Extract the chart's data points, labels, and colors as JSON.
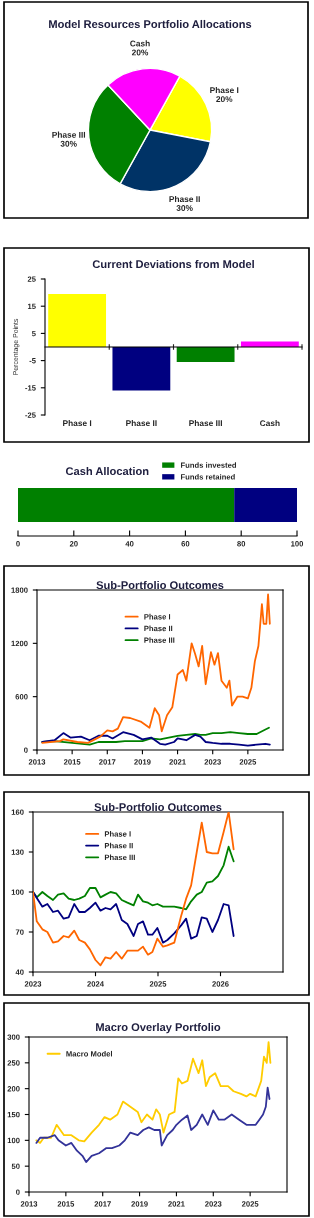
{
  "chart_data": [
    {
      "type": "pie",
      "title": "Model Resources Portfolio Allocations",
      "categories": [
        "Phase I",
        "Phase II",
        "Phase III",
        "Cash"
      ],
      "values": [
        20,
        30,
        30,
        20
      ],
      "value_labels": [
        "20%",
        "30%",
        "30%",
        "20%"
      ],
      "colors": [
        "#ffff00",
        "#003366",
        "#008000",
        "#ff00ff"
      ]
    },
    {
      "type": "bar",
      "title": "Current Deviations from Model",
      "ylabel": "Percentage Points",
      "categories": [
        "Phase I",
        "Phase II",
        "Phase III",
        "Cash"
      ],
      "values": [
        19.5,
        -16,
        -5.5,
        2
      ],
      "colors": [
        "#ffff00",
        "#000080",
        "#008000",
        "#ff00ff"
      ],
      "ylim": [
        -25,
        25
      ],
      "yticks": [
        -25,
        -15,
        -5,
        5,
        15,
        25
      ]
    },
    {
      "type": "bar",
      "title": "Cash Allocation",
      "orientation": "horizontal",
      "stacked": true,
      "categories": [
        null
      ],
      "legend": "top",
      "xlim": [
        0,
        100
      ],
      "xticks": [
        0,
        20,
        40,
        60,
        80,
        100
      ],
      "series": [
        {
          "name": "Funds invested",
          "color": "#008000",
          "values": [
            77.5
          ]
        },
        {
          "name": "Funds retained",
          "color": "#000080",
          "values": [
            22.5
          ]
        }
      ]
    },
    {
      "type": "line",
      "title": "Sub-Portfolio Outcomes",
      "legend": "top",
      "xlim": [
        2013,
        2027
      ],
      "xticks": [
        2013,
        2015,
        2017,
        2019,
        2021,
        2023,
        2025
      ],
      "ylim": [
        0,
        1800
      ],
      "yticks": [
        0,
        600,
        1200,
        1800
      ],
      "series": [
        {
          "name": "Phase I",
          "color": "#ff6600",
          "x": [
            2013.3,
            2014.3,
            2014.5,
            2015.3,
            2015.9,
            2016.6,
            2017.0,
            2017.3,
            2017.6,
            2017.9,
            2018.3,
            2018.9,
            2019.4,
            2019.7,
            2019.95,
            2020.1,
            2020.4,
            2020.7,
            2021.0,
            2021.3,
            2021.5,
            2021.8,
            2022.0,
            2022.2,
            2022.4,
            2022.6,
            2022.9,
            2023.1,
            2023.3,
            2023.5,
            2023.8,
            2023.95,
            2024.1,
            2024.4,
            2024.7,
            2025.0,
            2025.2,
            2025.4,
            2025.6,
            2025.8,
            2025.9,
            2026.05,
            2026.15,
            2026.25
          ],
          "values": [
            80,
            100,
            120,
            90,
            80,
            150,
            220,
            210,
            240,
            370,
            360,
            320,
            250,
            470,
            390,
            210,
            390,
            480,
            850,
            900,
            780,
            1200,
            1080,
            940,
            1170,
            740,
            1100,
            960,
            1090,
            780,
            700,
            780,
            500,
            600,
            600,
            580,
            700,
            1000,
            1170,
            1640,
            1420,
            1420,
            1750,
            1420
          ]
        },
        {
          "name": "Phase II",
          "color": "#000080",
          "x": [
            2013.3,
            2014.0,
            2014.5,
            2014.9,
            2015.5,
            2016.0,
            2016.5,
            2017.0,
            2017.3,
            2017.9,
            2018.5,
            2019.0,
            2019.5,
            2020.0,
            2020.3,
            2020.8,
            2021.0,
            2021.5,
            2022.0,
            2022.3,
            2022.6,
            2023.0,
            2023.5,
            2024.0,
            2024.5,
            2025.0,
            2025.5,
            2026.0,
            2026.25
          ],
          "values": [
            90,
            110,
            190,
            140,
            150,
            110,
            160,
            160,
            130,
            200,
            170,
            120,
            140,
            70,
            60,
            90,
            130,
            110,
            170,
            150,
            90,
            80,
            70,
            70,
            60,
            50,
            60,
            70,
            60
          ]
        },
        {
          "name": "Phase III",
          "color": "#008000",
          "x": [
            2013.3,
            2014.0,
            2015.0,
            2016.0,
            2016.5,
            2017.5,
            2018.0,
            2019.0,
            2019.5,
            2020.0,
            2020.5,
            2021.0,
            2021.5,
            2022.0,
            2022.3,
            2022.6,
            2023.0,
            2023.5,
            2024.0,
            2024.5,
            2025.0,
            2025.5,
            2026.0,
            2026.2
          ],
          "values": [
            90,
            100,
            80,
            60,
            90,
            90,
            100,
            100,
            130,
            120,
            140,
            160,
            170,
            180,
            170,
            170,
            190,
            190,
            200,
            190,
            180,
            180,
            230,
            250
          ]
        }
      ]
    },
    {
      "type": "line",
      "title": "Sub-Portfolio Outcomes",
      "legend": "top left",
      "xlim": [
        2023,
        2027
      ],
      "xticks": [
        2023,
        2024,
        2025,
        2026
      ],
      "ylim": [
        40,
        160
      ],
      "yticks": [
        40,
        70,
        100,
        130,
        160
      ],
      "series": [
        {
          "name": "Phase I",
          "color": "#ff6600",
          "x": [
            2023.0,
            2023.06,
            2023.15,
            2023.23,
            2023.32,
            2023.4,
            2023.49,
            2023.57,
            2023.66,
            2023.74,
            2023.83,
            2023.91,
            2024.0,
            2024.08,
            2024.16,
            2024.24,
            2024.33,
            2024.42,
            2024.51,
            2024.61,
            2024.68,
            2024.76,
            2024.84,
            2024.91,
            2024.99,
            2025.08,
            2025.15,
            2025.26,
            2025.37,
            2025.45,
            2025.53,
            2025.62,
            2025.7,
            2025.78,
            2025.87,
            2025.96,
            2026.05,
            2026.13,
            2026.21
          ],
          "values": [
            100,
            78,
            72,
            70,
            62,
            63,
            67,
            66,
            71,
            64,
            62,
            57,
            49,
            45,
            51,
            50,
            55,
            50,
            56,
            56,
            56,
            59,
            53,
            55,
            65,
            59,
            60,
            62,
            82,
            95,
            105,
            130,
            152,
            130,
            129,
            129,
            145,
            160,
            132
          ]
        },
        {
          "name": "Phase II",
          "color": "#000080",
          "x": [
            2023.0,
            2023.15,
            2023.23,
            2023.32,
            2023.4,
            2023.49,
            2023.57,
            2023.66,
            2023.74,
            2023.83,
            2023.91,
            2024.0,
            2024.08,
            2024.16,
            2024.24,
            2024.33,
            2024.42,
            2024.51,
            2024.61,
            2024.68,
            2024.76,
            2024.84,
            2024.91,
            2024.99,
            2025.08,
            2025.15,
            2025.26,
            2025.37,
            2025.45,
            2025.53,
            2025.62,
            2025.7,
            2025.78,
            2025.87,
            2025.96,
            2026.05,
            2026.13,
            2026.21
          ],
          "values": [
            100,
            89,
            91,
            85,
            86,
            80,
            81,
            91,
            85,
            85,
            88,
            92,
            86,
            88,
            87,
            91,
            79,
            76,
            67,
            76,
            78,
            68,
            68,
            73,
            62,
            64,
            69,
            75,
            80,
            65,
            67,
            81,
            80,
            70,
            79,
            91,
            90,
            67
          ]
        },
        {
          "name": "Phase III",
          "color": "#008000",
          "x": [
            2023.0,
            2023.06,
            2023.15,
            2023.23,
            2023.32,
            2023.4,
            2023.49,
            2023.57,
            2023.66,
            2023.74,
            2023.83,
            2023.91,
            2024.0,
            2024.08,
            2024.16,
            2024.24,
            2024.33,
            2024.42,
            2024.51,
            2024.61,
            2024.68,
            2024.76,
            2024.84,
            2024.91,
            2024.99,
            2025.08,
            2025.15,
            2025.26,
            2025.37,
            2025.45,
            2025.53,
            2025.62,
            2025.7,
            2025.78,
            2025.87,
            2025.96,
            2026.05,
            2026.13,
            2026.21
          ],
          "values": [
            100,
            96,
            100,
            97,
            94,
            98,
            99,
            95,
            94,
            95,
            97,
            103,
            103,
            96,
            98,
            100,
            99,
            94,
            92,
            90,
            98,
            93,
            92,
            90,
            91,
            89,
            89,
            89,
            88,
            87,
            93,
            98,
            100,
            107,
            108,
            112,
            120,
            134,
            123
          ]
        }
      ]
    },
    {
      "type": "line",
      "title": "Macro Overlay Portfolio",
      "legend": "top left",
      "xlim": [
        2013,
        2027
      ],
      "xticks": [
        2013,
        2015,
        2017,
        2019,
        2021,
        2023,
        2025
      ],
      "ylim": [
        0,
        300
      ],
      "yticks": [
        0,
        50,
        100,
        150,
        200,
        250,
        300
      ],
      "series": [
        {
          "color": "#333399",
          "x": [
            2013.4,
            2013.6,
            2014.0,
            2014.4,
            2014.6,
            2015.0,
            2015.3,
            2015.6,
            2015.9,
            2016.1,
            2016.4,
            2016.8,
            2017.2,
            2017.5,
            2017.9,
            2018.2,
            2018.5,
            2018.9,
            2019.2,
            2019.5,
            2019.8,
            2020.1,
            2020.2,
            2020.5,
            2020.8,
            2021.0,
            2021.3,
            2021.6,
            2021.8,
            2022.1,
            2022.4,
            2022.7,
            2023.0,
            2023.3,
            2023.6,
            2024.0,
            2024.4,
            2024.8,
            2025.3,
            2025.5,
            2025.7,
            2025.85,
            2025.95,
            2026.05
          ],
          "values": [
            95,
            105,
            105,
            110,
            100,
            90,
            95,
            80,
            70,
            58,
            70,
            75,
            85,
            85,
            90,
            100,
            115,
            110,
            120,
            125,
            120,
            120,
            90,
            110,
            120,
            130,
            140,
            148,
            120,
            130,
            150,
            130,
            158,
            140,
            140,
            150,
            140,
            130,
            130,
            140,
            150,
            165,
            202,
            180
          ]
        },
        {
          "name": "Macro Model",
          "color": "#ffcc00",
          "x": [
            2013.4,
            2013.6,
            2013.8,
            2014.2,
            2014.5,
            2014.9,
            2015.3,
            2015.7,
            2016.0,
            2016.4,
            2016.8,
            2017.1,
            2017.4,
            2017.8,
            2018.1,
            2018.5,
            2018.9,
            2019.1,
            2019.4,
            2019.7,
            2019.9,
            2020.1,
            2020.3,
            2020.6,
            2020.9,
            2021.1,
            2021.3,
            2021.6,
            2021.9,
            2022.2,
            2022.4,
            2022.6,
            2022.8,
            2023.1,
            2023.4,
            2023.8,
            2024.1,
            2024.5,
            2024.8,
            2025.0,
            2025.3,
            2025.6,
            2025.75,
            2025.9,
            2026.0,
            2026.1
          ],
          "values": [
            100,
            95,
            105,
            105,
            130,
            110,
            110,
            100,
            98,
            115,
            130,
            145,
            140,
            150,
            175,
            165,
            155,
            135,
            150,
            140,
            160,
            150,
            115,
            150,
            155,
            220,
            210,
            215,
            258,
            230,
            255,
            205,
            222,
            230,
            205,
            205,
            195,
            190,
            185,
            190,
            185,
            215,
            262,
            250,
            290,
            250
          ]
        }
      ]
    }
  ]
}
